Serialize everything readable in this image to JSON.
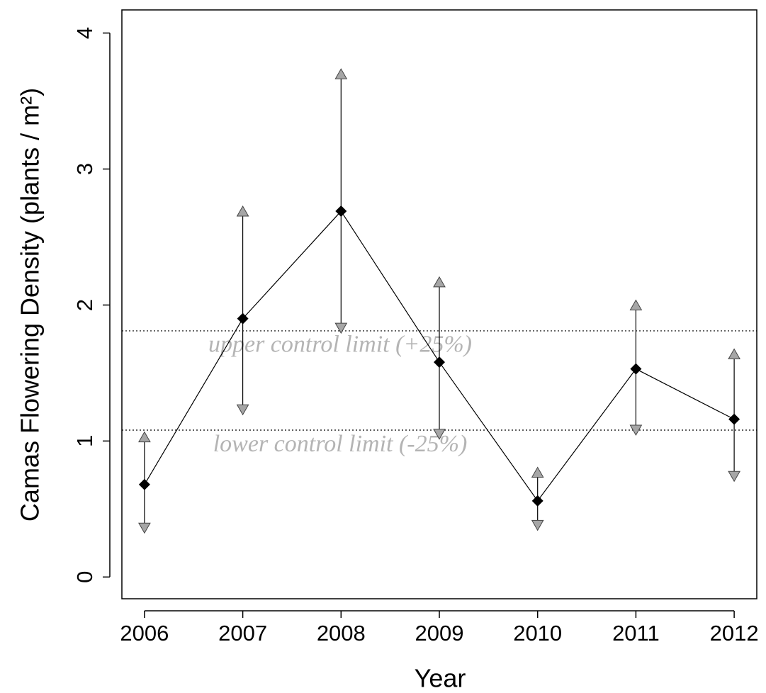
{
  "chart_data": {
    "type": "line",
    "x_label": "Year",
    "y_label": "Camas Flowering Density  (plants / m²)",
    "x": [
      2006,
      2007,
      2008,
      2009,
      2010,
      2011,
      2012
    ],
    "values": [
      0.68,
      1.9,
      2.69,
      1.58,
      0.56,
      1.53,
      1.16
    ],
    "upper": [
      1.03,
      2.69,
      3.7,
      2.17,
      0.77,
      2.0,
      1.64
    ],
    "lower": [
      0.36,
      1.23,
      1.83,
      1.05,
      0.38,
      1.08,
      0.74
    ],
    "color": "#000000",
    "arrow_color": "#a6a6a6",
    "hlines": [
      {
        "value": 1.81,
        "label": "upper control limit (+25%)"
      },
      {
        "value": 1.08,
        "label": "lower control limit (-25%)"
      }
    ],
    "xlim": [
      2005.77,
      2012.23
    ],
    "ylim": [
      -0.16,
      4.17
    ],
    "xticks": [
      2006,
      2007,
      2008,
      2009,
      2010,
      2011,
      2012
    ],
    "yticks": [
      0,
      1,
      2,
      3,
      4
    ]
  }
}
